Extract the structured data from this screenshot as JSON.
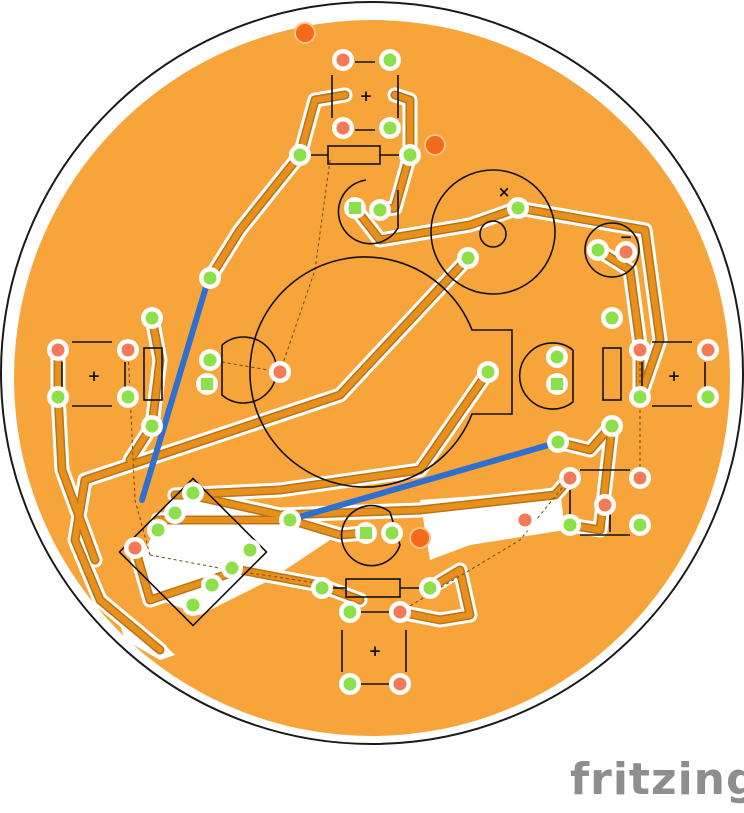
{
  "brand": {
    "text": "fritzing"
  },
  "colors": {
    "board_fill": "#f7a53b",
    "board_outline": "#1a1a1a",
    "trace_copper": "#e8901a",
    "trace_edge": "#b8741c",
    "trace_clearance": "#ffffff",
    "pad_green": "#8ee04a",
    "pad_red": "#f47a57",
    "pad_ring": "#ffffff",
    "silkscreen": "#111111",
    "jumper_wire": "#2f6fcf",
    "ratsnest": "#6b4a10",
    "via_marker": "#f26a1a",
    "brand_text": "#8e8e8e"
  },
  "silkscreen_labels": {
    "plus": "+",
    "minus": "−",
    "cross": "×"
  }
}
